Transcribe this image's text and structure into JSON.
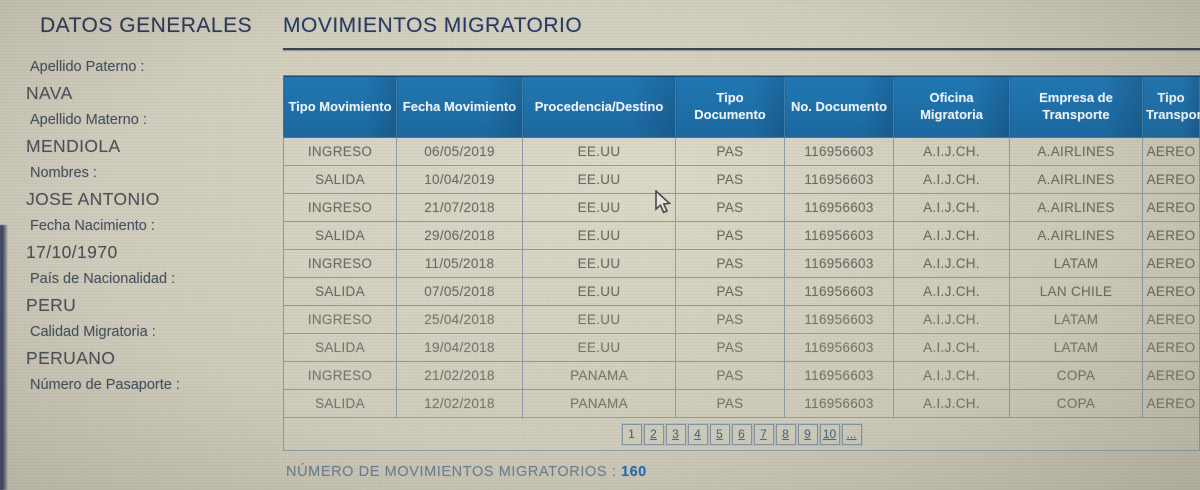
{
  "tabs": [
    {
      "label": "DATOS GENERALES",
      "active": false
    },
    {
      "label": "MOVIMIENTOS MIGRATORIO",
      "active": true
    }
  ],
  "sidebar": {
    "fields": [
      {
        "label": "Apellido Paterno :",
        "value": "NAVA"
      },
      {
        "label": "Apellido Materno :",
        "value": "MENDIOLA"
      },
      {
        "label": "Nombres :",
        "value": "JOSE ANTONIO"
      },
      {
        "label": "Fecha Nacimiento :",
        "value": "17/10/1970"
      },
      {
        "label": "País de Nacionalidad :",
        "value": "PERU"
      },
      {
        "label": "Calidad Migratoria :",
        "value": "PERUANO"
      },
      {
        "label": "Número de Pasaporte :",
        "value": ""
      }
    ]
  },
  "table": {
    "columns": [
      "Tipo Movimiento",
      "Fecha Movimiento",
      "Procedencia/Destino",
      "Tipo Documento",
      "No. Documento",
      "Oficina Migratoria",
      "Empresa de Transporte",
      "Tipo Transporte"
    ],
    "rows": [
      [
        "INGRESO",
        "06/05/2019",
        "EE.UU",
        "PAS",
        "116956603",
        "A.I.J.CH.",
        "A.AIRLINES",
        "AEREO"
      ],
      [
        "SALIDA",
        "10/04/2019",
        "EE.UU",
        "PAS",
        "116956603",
        "A.I.J.CH.",
        "A.AIRLINES",
        "AEREO"
      ],
      [
        "INGRESO",
        "21/07/2018",
        "EE.UU",
        "PAS",
        "116956603",
        "A.I.J.CH.",
        "A.AIRLINES",
        "AEREO"
      ],
      [
        "SALIDA",
        "29/06/2018",
        "EE.UU",
        "PAS",
        "116956603",
        "A.I.J.CH.",
        "A.AIRLINES",
        "AEREO"
      ],
      [
        "INGRESO",
        "11/05/2018",
        "EE.UU",
        "PAS",
        "116956603",
        "A.I.J.CH.",
        "LATAM",
        "AEREO"
      ],
      [
        "SALIDA",
        "07/05/2018",
        "EE.UU",
        "PAS",
        "116956603",
        "A.I.J.CH.",
        "LAN CHILE",
        "AEREO"
      ],
      [
        "INGRESO",
        "25/04/2018",
        "EE.UU",
        "PAS",
        "116956603",
        "A.I.J.CH.",
        "LATAM",
        "AEREO"
      ],
      [
        "SALIDA",
        "19/04/2018",
        "EE.UU",
        "PAS",
        "116956603",
        "A.I.J.CH.",
        "LATAM",
        "AEREO"
      ],
      [
        "INGRESO",
        "21/02/2018",
        "PANAMA",
        "PAS",
        "116956603",
        "A.I.J.CH.",
        "COPA",
        "AEREO"
      ],
      [
        "SALIDA",
        "12/02/2018",
        "PANAMA",
        "PAS",
        "116956603",
        "A.I.J.CH.",
        "COPA",
        "AEREO"
      ]
    ]
  },
  "pagination": {
    "pages": [
      "1",
      "2",
      "3",
      "4",
      "5",
      "6",
      "7",
      "8",
      "9",
      "10",
      "..."
    ],
    "current": "1"
  },
  "footer": {
    "label": "NÚMERO DE MOVIMIENTOS MIGRATORIOS :",
    "value": "160"
  },
  "colors": {
    "header_bg": "#1f6fa8",
    "accent_blue": "#1f6dae",
    "background": "#d6d2c0"
  }
}
